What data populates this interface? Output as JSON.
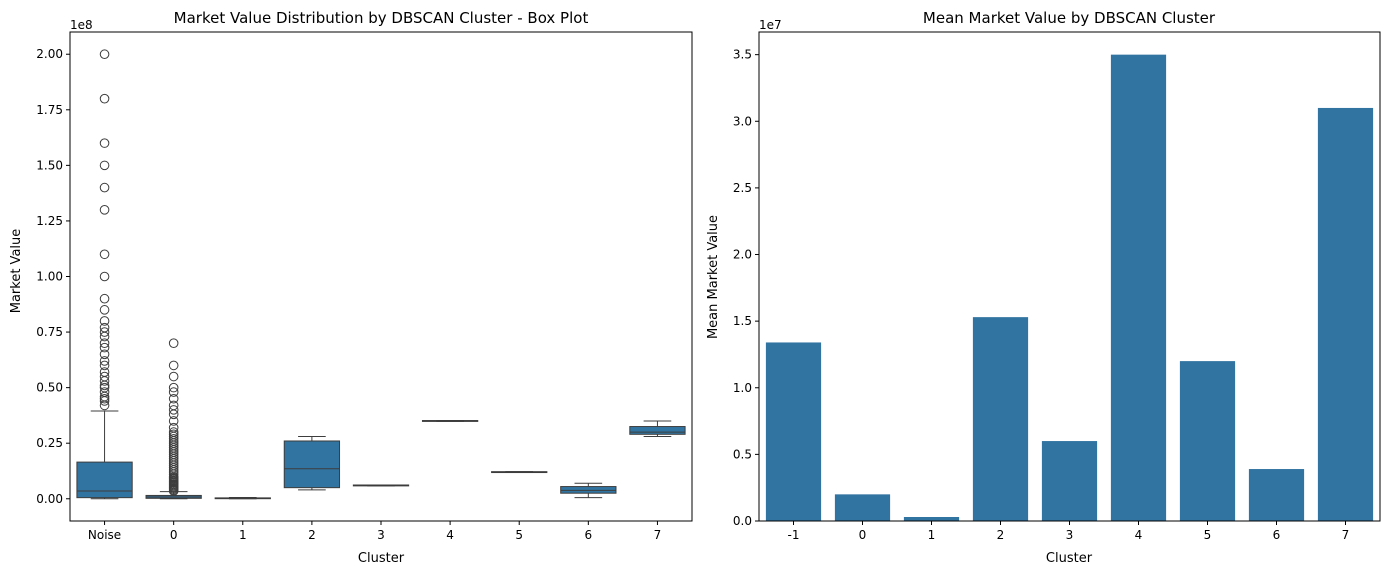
{
  "colors": {
    "box_fill": "#3274a1",
    "box_edge": "#3d3d3d",
    "bar_fill": "#3274a1"
  },
  "chart_data": [
    {
      "type": "box",
      "title": "Market Value Distribution by DBSCAN Cluster - Box Plot",
      "xlabel": "Cluster",
      "ylabel": "Market Value",
      "offset_label": "1e8",
      "scale": 100000000,
      "categories": [
        "Noise",
        "0",
        "1",
        "2",
        "3",
        "4",
        "5",
        "6",
        "7"
      ],
      "ylim": [
        -0.1,
        2.1
      ],
      "yticks": [
        0.0,
        0.25,
        0.5,
        0.75,
        1.0,
        1.25,
        1.5,
        1.75,
        2.0
      ],
      "ytick_labels": [
        "0.00",
        "0.25",
        "0.50",
        "0.75",
        "1.00",
        "1.25",
        "1.50",
        "1.75",
        "2.00"
      ],
      "boxes": [
        {
          "category": "Noise",
          "whisker_low": 0.0,
          "q1": 0.005,
          "median": 0.035,
          "q3": 0.165,
          "whisker_high": 0.395,
          "outliers": [
            0.42,
            0.44,
            0.45,
            0.46,
            0.48,
            0.5,
            0.51,
            0.53,
            0.55,
            0.57,
            0.6,
            0.62,
            0.65,
            0.68,
            0.7,
            0.73,
            0.75,
            0.77,
            0.8,
            0.85,
            0.9,
            1.0,
            1.1,
            1.3,
            1.4,
            1.5,
            1.6,
            1.8,
            2.0
          ]
        },
        {
          "category": "0",
          "whisker_low": 0.0,
          "q1": 0.002,
          "median": 0.008,
          "q3": 0.015,
          "whisker_high": 0.032,
          "outliers": [
            0.035,
            0.04,
            0.045,
            0.05,
            0.055,
            0.06,
            0.065,
            0.07,
            0.075,
            0.08,
            0.085,
            0.09,
            0.095,
            0.1,
            0.11,
            0.12,
            0.13,
            0.14,
            0.15,
            0.16,
            0.17,
            0.18,
            0.19,
            0.2,
            0.21,
            0.22,
            0.23,
            0.24,
            0.25,
            0.26,
            0.27,
            0.28,
            0.29,
            0.3,
            0.32,
            0.35,
            0.38,
            0.4,
            0.42,
            0.45,
            0.48,
            0.5,
            0.55,
            0.6,
            0.7
          ]
        },
        {
          "category": "1",
          "whisker_low": 0.0,
          "q1": 0.0005,
          "median": 0.002,
          "q3": 0.004,
          "whisker_high": 0.006,
          "outliers": []
        },
        {
          "category": "2",
          "whisker_low": 0.04,
          "q1": 0.05,
          "median": 0.135,
          "q3": 0.26,
          "whisker_high": 0.28,
          "outliers": []
        },
        {
          "category": "3",
          "whisker_low": 0.058,
          "q1": 0.058,
          "median": 0.06,
          "q3": 0.062,
          "whisker_high": 0.062,
          "outliers": []
        },
        {
          "category": "4",
          "whisker_low": 0.348,
          "q1": 0.348,
          "median": 0.35,
          "q3": 0.352,
          "whisker_high": 0.352,
          "outliers": []
        },
        {
          "category": "5",
          "whisker_low": 0.118,
          "q1": 0.118,
          "median": 0.12,
          "q3": 0.122,
          "whisker_high": 0.122,
          "outliers": []
        },
        {
          "category": "6",
          "whisker_low": 0.005,
          "q1": 0.025,
          "median": 0.038,
          "q3": 0.055,
          "whisker_high": 0.07,
          "outliers": []
        },
        {
          "category": "7",
          "whisker_low": 0.28,
          "q1": 0.29,
          "median": 0.3,
          "q3": 0.325,
          "whisker_high": 0.35,
          "outliers": []
        }
      ]
    },
    {
      "type": "bar",
      "title": "Mean Market Value by DBSCAN Cluster",
      "xlabel": "Cluster",
      "ylabel": "Mean Market Value",
      "offset_label": "1e7",
      "scale": 10000000,
      "categories": [
        "-1",
        "0",
        "1",
        "2",
        "3",
        "4",
        "5",
        "6",
        "7"
      ],
      "values": [
        1.34,
        0.2,
        0.03,
        1.53,
        0.6,
        3.5,
        1.2,
        0.39,
        3.1
      ],
      "ylim": [
        0,
        3.67
      ],
      "yticks": [
        0.0,
        0.5,
        1.0,
        1.5,
        2.0,
        2.5,
        3.0,
        3.5
      ],
      "ytick_labels": [
        "0.0",
        "0.5",
        "1.0",
        "1.5",
        "2.0",
        "2.5",
        "3.0",
        "3.5"
      ]
    }
  ]
}
